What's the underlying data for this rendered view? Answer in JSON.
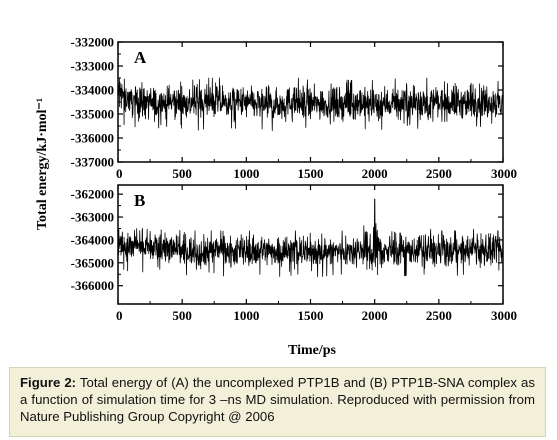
{
  "chart_data": [
    {
      "type": "line",
      "panel_label": "A",
      "xlim": [
        0,
        3000
      ],
      "ylim": [
        -337000,
        -332000
      ],
      "x_ticks": [
        0,
        500,
        1000,
        1500,
        2000,
        2500,
        3000
      ],
      "x_tick_labels": [
        "0",
        "500",
        "1000",
        "1500",
        "2000",
        "2500",
        "3000"
      ],
      "y_ticks": [
        -332000,
        -333000,
        -334000,
        -335000,
        -336000,
        -337000
      ],
      "y_tick_labels": [
        "-332000",
        "-333000",
        "-334000",
        "-335000",
        "-336000",
        "-337000"
      ],
      "series": [
        {
          "color": "#000000",
          "x": [
            0,
            100,
            200,
            300,
            400,
            500,
            600,
            700,
            800,
            900,
            1000,
            1100,
            1200,
            1300,
            1400,
            1500,
            1600,
            1700,
            1800,
            1900,
            2000,
            2100,
            2200,
            2300,
            2400,
            2500,
            2600,
            2700,
            2800,
            2900,
            3000
          ],
          "mean": [
            -334100,
            -334400,
            -334500,
            -334550,
            -334500,
            -334500,
            -334550,
            -334500,
            -334500,
            -334550,
            -334550,
            -334600,
            -334600,
            -334550,
            -334550,
            -334600,
            -334550,
            -334600,
            -334550,
            -334600,
            -334600,
            -334550,
            -334550,
            -334500,
            -334550,
            -334550,
            -334500,
            -334550,
            -334500,
            -334500,
            -334600
          ],
          "min": [
            -335400,
            -335500,
            -335600,
            -335600,
            -335500,
            -335600,
            -335700,
            -335600,
            -335500,
            -335600,
            -335600,
            -335600,
            -335700,
            -335600,
            -335500,
            -335600,
            -335600,
            -335600,
            -335500,
            -335600,
            -335700,
            -335600,
            -335500,
            -335600,
            -335600,
            -335500,
            -335600,
            -335600,
            -335500,
            -335600,
            -335700
          ],
          "max": [
            -333100,
            -333500,
            -333600,
            -333600,
            -333500,
            -333500,
            -333600,
            -333500,
            -333500,
            -333600,
            -333500,
            -333600,
            -333600,
            -333500,
            -333500,
            -333600,
            -333600,
            -333500,
            -333600,
            -333600,
            -333600,
            -333600,
            -333500,
            -333400,
            -333500,
            -333500,
            -333300,
            -333500,
            -333500,
            -333500,
            -333600
          ]
        }
      ]
    },
    {
      "type": "line",
      "panel_label": "B",
      "xlim": [
        0,
        3000
      ],
      "ylim": [
        -366800,
        -361600
      ],
      "x_ticks": [
        0,
        500,
        1000,
        1500,
        2000,
        2500,
        3000
      ],
      "x_tick_labels": [
        "0",
        "500",
        "1000",
        "1500",
        "2000",
        "2500",
        "3000"
      ],
      "y_ticks": [
        -362000,
        -363000,
        -364000,
        -365000,
        -366000
      ],
      "y_tick_labels": [
        "-362000",
        "-363000",
        "-364000",
        "-365000",
        "-366000"
      ],
      "series": [
        {
          "color": "#000000",
          "x": [
            0,
            100,
            200,
            300,
            400,
            500,
            600,
            700,
            800,
            900,
            1000,
            1100,
            1200,
            1300,
            1400,
            1500,
            1600,
            1700,
            1800,
            1900,
            2000,
            2100,
            2200,
            2300,
            2400,
            2500,
            2600,
            2700,
            2800,
            2900,
            3000
          ],
          "mean": [
            -364100,
            -364300,
            -364350,
            -364400,
            -364400,
            -364450,
            -364500,
            -364500,
            -364450,
            -364500,
            -364500,
            -364450,
            -364450,
            -364500,
            -364500,
            -364550,
            -364500,
            -364500,
            -364450,
            -364450,
            -364400,
            -364500,
            -364500,
            -364450,
            -364450,
            -364500,
            -364500,
            -364450,
            -364450,
            -364500,
            -364500
          ],
          "min": [
            -365200,
            -365400,
            -365500,
            -365500,
            -365600,
            -365500,
            -365600,
            -365900,
            -365600,
            -365500,
            -365600,
            -365500,
            -365600,
            -365600,
            -365500,
            -365600,
            -365600,
            -365500,
            -365500,
            -365600,
            -365500,
            -365600,
            -365600,
            -365500,
            -365500,
            -365600,
            -365600,
            -365500,
            -365500,
            -365600,
            -365900
          ],
          "max": [
            -363400,
            -363500,
            -363500,
            -363600,
            -363500,
            -363600,
            -363600,
            -363600,
            -363600,
            -363700,
            -363600,
            -363600,
            -363500,
            -363600,
            -363600,
            -363700,
            -363600,
            -363600,
            -363600,
            -363600,
            -362200,
            -363600,
            -363700,
            -363600,
            -363500,
            -363600,
            -363600,
            -363600,
            -363500,
            -363600,
            -363600
          ]
        }
      ]
    }
  ],
  "shared_axes": {
    "xlabel": "Time/ps",
    "ylabel": "Total energy/kJ·mol⁻¹"
  },
  "caption": {
    "label": "Figure 2:",
    "text": " Total energy of (A) the uncomplexed PTP1B and (B) PTP1B-SNA complex as a function of simulation time for 3 –ns MD simulation. Reproduced with permission from Nature Publishing Group Copyright @ 2006"
  }
}
